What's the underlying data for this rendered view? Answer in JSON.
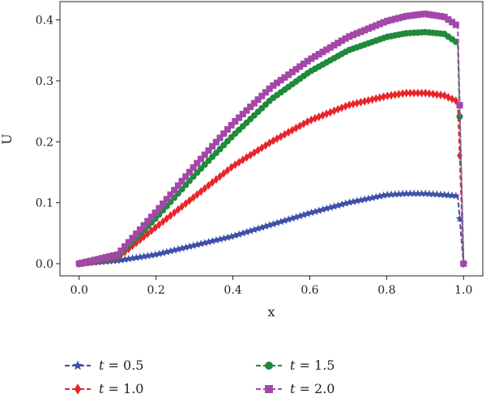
{
  "chart_data": {
    "type": "line",
    "xlabel": "x",
    "ylabel": "U",
    "xlim": [
      -0.05,
      1.05
    ],
    "ylim": [
      -0.02,
      0.43
    ],
    "x_ticks": [
      "0.0",
      "0.2",
      "0.4",
      "0.6",
      "0.8",
      "1.0"
    ],
    "y_ticks": [
      "0.0",
      "0.1",
      "0.2",
      "0.3",
      "0.4"
    ],
    "grid": false,
    "legend_position": "bottom",
    "legend_columns": 2,
    "x": [
      0.0,
      0.1,
      0.2,
      0.3,
      0.4,
      0.5,
      0.6,
      0.7,
      0.8,
      0.85,
      0.9,
      0.95,
      0.985,
      1.0
    ],
    "series": [
      {
        "name": "t = 0.5",
        "var": "t",
        "value_text": "= 0.5",
        "color": "#3f4fa8",
        "marker": "star",
        "values": [
          0.0,
          0.005,
          0.015,
          0.03,
          0.045,
          0.064,
          0.083,
          0.1,
          0.113,
          0.115,
          0.115,
          0.113,
          0.111,
          0.0
        ]
      },
      {
        "name": "t = 1.0",
        "var": "t",
        "value_text": "= 1.0",
        "color": "#e8242a",
        "marker": "diamond",
        "values": [
          0.0,
          0.01,
          0.06,
          0.11,
          0.16,
          0.2,
          0.235,
          0.26,
          0.275,
          0.28,
          0.28,
          0.276,
          0.266,
          0.0
        ]
      },
      {
        "name": "t = 1.5",
        "var": "t",
        "value_text": "= 1.5",
        "color": "#1f8a3a",
        "marker": "circle",
        "values": [
          0.0,
          0.012,
          0.075,
          0.145,
          0.21,
          0.27,
          0.315,
          0.35,
          0.372,
          0.378,
          0.38,
          0.377,
          0.362,
          0.0
        ]
      },
      {
        "name": "t = 2.0",
        "var": "t",
        "value_text": "= 2.0",
        "color": "#a347a8",
        "marker": "square",
        "values": [
          0.0,
          0.015,
          0.085,
          0.16,
          0.23,
          0.29,
          0.335,
          0.372,
          0.398,
          0.406,
          0.41,
          0.405,
          0.39,
          0.0
        ]
      }
    ]
  }
}
